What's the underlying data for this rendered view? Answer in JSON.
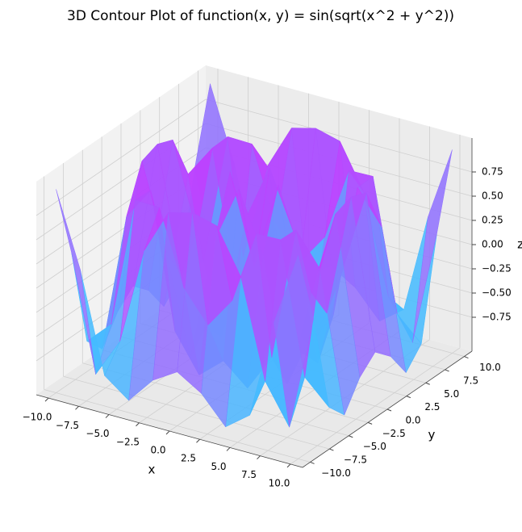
{
  "chart_data": {
    "type": "surface3d",
    "title": "3D Contour Plot of function(x, y) = sin(sqrt(x^2 + y^2))",
    "xlabel": "x",
    "ylabel": "y",
    "zlabel": "z",
    "colormap": "cool",
    "grid": true,
    "x": [
      -10,
      -8,
      -6,
      -4,
      -2,
      0,
      2,
      4,
      6,
      8,
      10
    ],
    "y": [
      -10,
      -8,
      -6,
      -4,
      -2,
      0,
      2,
      4,
      6,
      8,
      10
    ],
    "z": [
      [
        1,
        0.238,
        -0.786,
        -0.975,
        -0.698,
        -0.544,
        -0.698,
        -0.975,
        -0.786,
        0.238,
        1
      ],
      [
        0.238,
        -0.95,
        -0.544,
        0.462,
        0.924,
        0.989,
        0.924,
        0.462,
        -0.544,
        -0.95,
        0.238
      ],
      [
        -0.786,
        -0.544,
        0.807,
        0.8,
        0.042,
        -0.279,
        0.042,
        0.8,
        0.807,
        -0.544,
        -0.786
      ],
      [
        -0.975,
        0.462,
        0.8,
        -0.586,
        -0.971,
        -0.757,
        -0.971,
        -0.586,
        0.8,
        0.462,
        -0.975
      ],
      [
        -0.698,
        0.924,
        0.042,
        -0.971,
        0.308,
        0.909,
        0.308,
        -0.971,
        0.042,
        0.924,
        -0.698
      ],
      [
        -0.544,
        0.989,
        -0.279,
        -0.757,
        0.909,
        0,
        0.909,
        -0.757,
        -0.279,
        0.989,
        -0.544
      ],
      [
        -0.698,
        0.924,
        0.042,
        -0.971,
        0.308,
        0.909,
        0.308,
        -0.971,
        0.042,
        0.924,
        -0.698
      ],
      [
        -0.975,
        0.462,
        0.8,
        -0.586,
        -0.971,
        -0.757,
        -0.971,
        -0.586,
        0.8,
        0.462,
        -0.975
      ],
      [
        -0.786,
        -0.544,
        0.807,
        0.8,
        0.042,
        -0.279,
        0.042,
        0.8,
        0.807,
        -0.544,
        -0.786
      ],
      [
        0.238,
        -0.95,
        -0.544,
        0.462,
        0.924,
        0.989,
        0.924,
        0.462,
        -0.544,
        -0.95,
        0.238
      ],
      [
        1,
        0.238,
        -0.786,
        -0.975,
        -0.698,
        -0.544,
        -0.698,
        -0.975,
        -0.786,
        0.238,
        1
      ]
    ],
    "xlim": [
      -11,
      11
    ],
    "ylim": [
      -11,
      11
    ],
    "zlim": [
      -1.1,
      1.1
    ],
    "xticks": [
      {
        "value": -10,
        "label": "−10.0"
      },
      {
        "value": -7.5,
        "label": "−7.5"
      },
      {
        "value": -5,
        "label": "−5.0"
      },
      {
        "value": -2.5,
        "label": "−2.5"
      },
      {
        "value": 0,
        "label": "0.0"
      },
      {
        "value": 2.5,
        "label": "2.5"
      },
      {
        "value": 5,
        "label": "5.0"
      },
      {
        "value": 7.5,
        "label": "7.5"
      },
      {
        "value": 10,
        "label": "10.0"
      }
    ],
    "yticks": [
      {
        "value": -10,
        "label": "−10.0"
      },
      {
        "value": -7.5,
        "label": "−7.5"
      },
      {
        "value": -5,
        "label": "−5.0"
      },
      {
        "value": -2.5,
        "label": "−2.5"
      },
      {
        "value": 0,
        "label": "0.0"
      },
      {
        "value": 2.5,
        "label": "2.5"
      },
      {
        "value": 5,
        "label": "5.0"
      },
      {
        "value": 7.5,
        "label": "7.5"
      },
      {
        "value": 10,
        "label": "10.0"
      }
    ],
    "zticks": [
      {
        "value": -0.75,
        "label": "−0.75"
      },
      {
        "value": -0.5,
        "label": "−0.50"
      },
      {
        "value": -0.25,
        "label": "−0.25"
      },
      {
        "value": 0,
        "label": "0.00"
      },
      {
        "value": 0.25,
        "label": "0.25"
      },
      {
        "value": 0.5,
        "label": "0.50"
      },
      {
        "value": 0.75,
        "label": "0.75"
      }
    ]
  }
}
